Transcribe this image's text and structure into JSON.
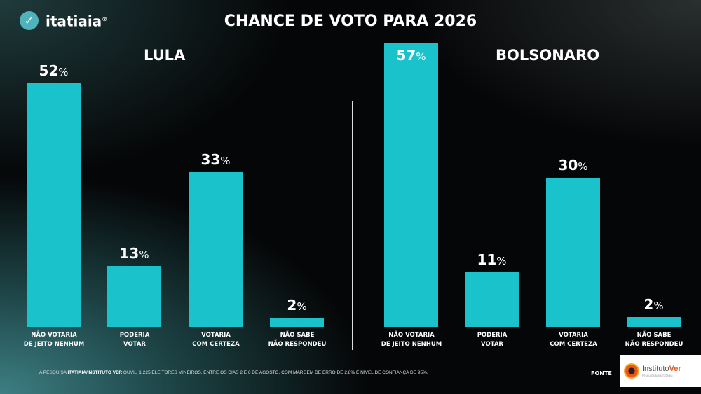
{
  "brand": {
    "name": "itatiaia",
    "mark": "®"
  },
  "title": "CHANCE DE VOTO PARA 2026",
  "chart_data": [
    {
      "type": "bar",
      "title": "LULA",
      "categories": [
        "NÃO VOTARIA|DE JEITO NENHUM",
        "PODERIA|VOTAR",
        "VOTARIA|COM CERTEZA",
        "NÃO SABE|NÃO RESPONDEU"
      ],
      "values": [
        52,
        13,
        33,
        2
      ],
      "unit": "%"
    },
    {
      "type": "bar",
      "title": "BOLSONARO",
      "categories": [
        "NÃO VOTARIA|DE JEITO NENHUM",
        "PODERIA|VOTAR",
        "VOTARIA|COM CERTEZA",
        "NÃO SABE|NÃO RESPONDEU"
      ],
      "values": [
        57,
        11,
        30,
        2
      ],
      "unit": "%"
    }
  ],
  "footer": {
    "prefix": "A PESQUISA ",
    "bold": "ITATIAIA/INSTITUTO VER",
    "text": " OUVIU 1.225 ELEITORES MINEIROS, ENTRE OS DIAS 2 E 6 DE AGOSTO, COM MARGEM DE ERRO DE 2,8% E NÍVEL DE CONFIANÇA DE 95%.",
    "fonte": "FONTE"
  },
  "source_logo": {
    "name_a": "Instituto",
    "name_b": "Ver",
    "tagline": "Pesquisa & Estratégia"
  },
  "colors": {
    "bar": "#1ac3cc"
  }
}
